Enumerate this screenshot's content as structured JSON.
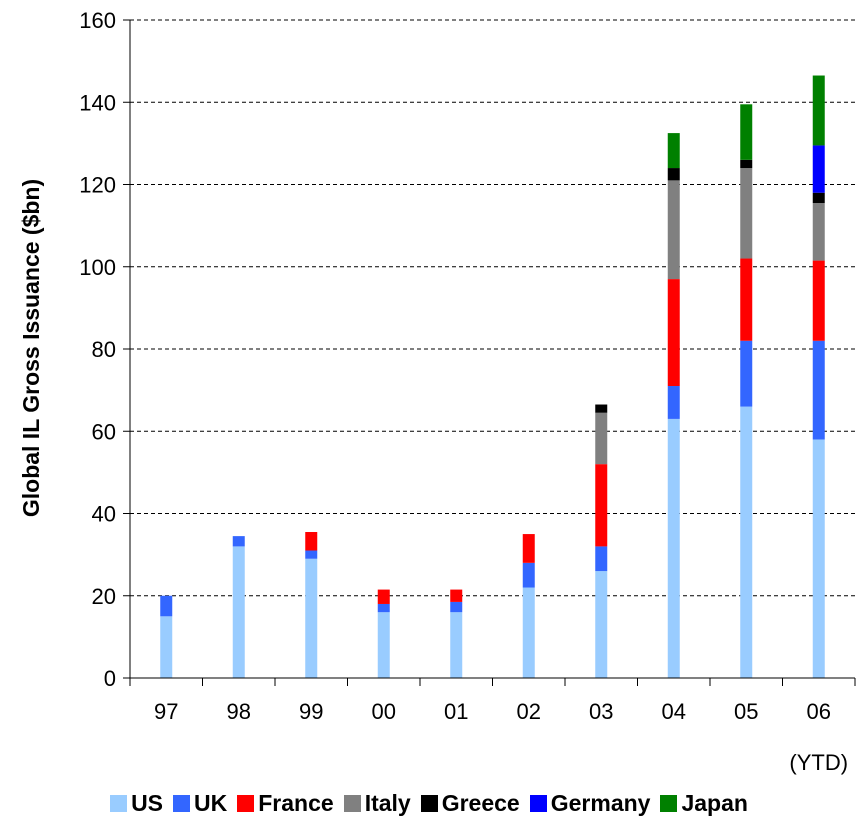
{
  "chart_data": {
    "type": "bar",
    "stacked": true,
    "ylabel": "Global IL Gross Issuance ($bn)",
    "xlabel": "",
    "ylim": [
      0,
      160
    ],
    "yticks": [
      0,
      20,
      40,
      60,
      80,
      100,
      120,
      140,
      160
    ],
    "grid": "horizontal-dashed",
    "legend_position": "bottom",
    "categories": [
      "97",
      "98",
      "99",
      "00",
      "01",
      "02",
      "03",
      "04",
      "05",
      "06"
    ],
    "category_sublabels": [
      "",
      "",
      "",
      "",
      "",
      "",
      "",
      "",
      "",
      "(YTD)"
    ],
    "series": [
      {
        "name": "US",
        "color": "#99ccff",
        "values": [
          15,
          32,
          29,
          16,
          16,
          22,
          26,
          63,
          66,
          58
        ]
      },
      {
        "name": "UK",
        "color": "#3366ff",
        "values": [
          5,
          2.5,
          2,
          2,
          2.5,
          6,
          6,
          8,
          16,
          24
        ]
      },
      {
        "name": "France",
        "color": "#ff0000",
        "values": [
          0,
          0,
          4.5,
          3.5,
          3,
          7,
          20,
          26,
          20,
          19.5
        ]
      },
      {
        "name": "Italy",
        "color": "#808080",
        "values": [
          0,
          0,
          0,
          0,
          0,
          0,
          12.5,
          24,
          22,
          14
        ]
      },
      {
        "name": "Greece",
        "color": "#000000",
        "values": [
          0,
          0,
          0,
          0,
          0,
          0,
          2,
          3,
          2,
          2.5
        ]
      },
      {
        "name": "Germany",
        "color": "#0000ff",
        "values": [
          0,
          0,
          0,
          0,
          0,
          0,
          0,
          0,
          0,
          11.5
        ]
      },
      {
        "name": "Japan",
        "color": "#008000",
        "values": [
          0,
          0,
          0,
          0,
          0,
          0,
          0,
          8.5,
          13.5,
          17
        ]
      }
    ]
  }
}
